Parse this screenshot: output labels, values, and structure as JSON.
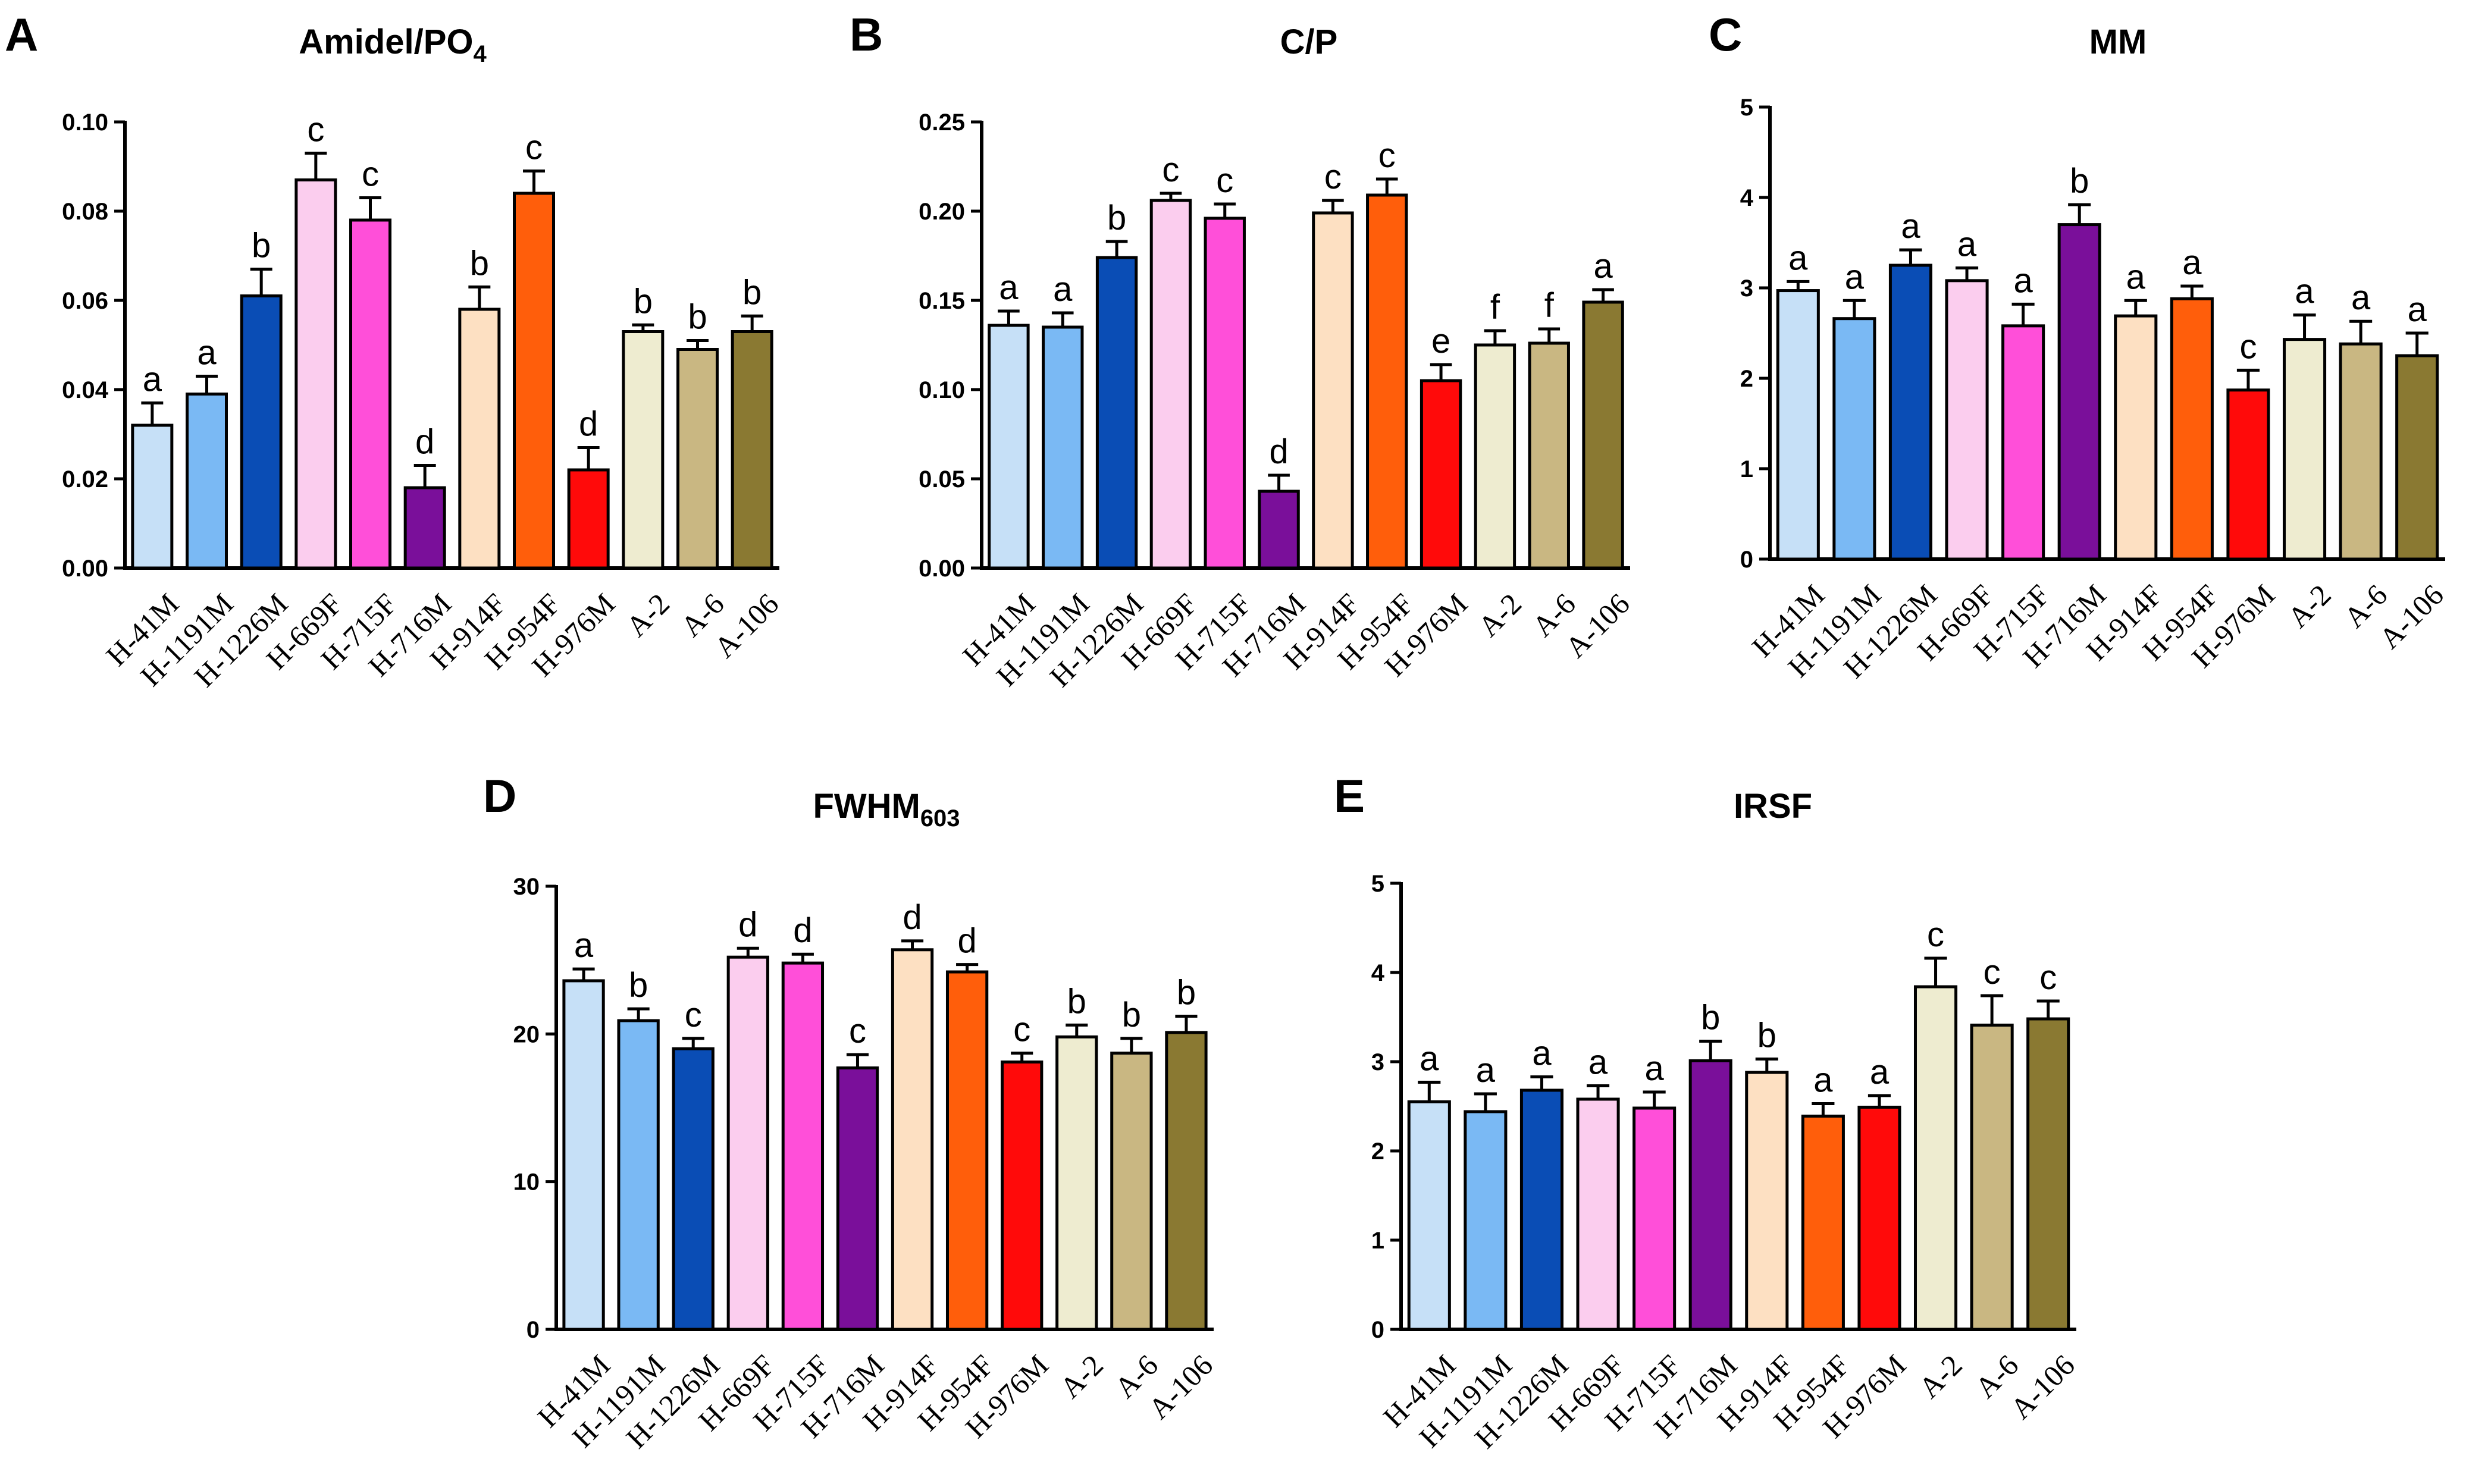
{
  "chart_data": [
    {
      "panel": "A",
      "title": "Amidel/PO",
      "title_sub": "4",
      "type": "bar",
      "ylim": [
        0,
        0.1
      ],
      "yticks": [
        "0.00",
        "0.02",
        "0.04",
        "0.06",
        "0.08",
        "0.10"
      ],
      "categories": [
        "H-41M",
        "H-1191M",
        "H-1226M",
        "H-669F",
        "H-715F",
        "H-716M",
        "H-914F",
        "H-954F",
        "H-976M",
        "A-2",
        "A-6",
        "A-106"
      ],
      "values": [
        0.032,
        0.039,
        0.061,
        0.087,
        0.078,
        0.018,
        0.058,
        0.084,
        0.022,
        0.053,
        0.049,
        0.053
      ],
      "errors": [
        0.005,
        0.004,
        0.006,
        0.006,
        0.005,
        0.005,
        0.005,
        0.005,
        0.005,
        0.0015,
        0.002,
        0.0035
      ],
      "letters": [
        "a",
        "a",
        "b",
        "c",
        "c",
        "d",
        "b",
        "c",
        "d",
        "b",
        "b",
        "b"
      ]
    },
    {
      "panel": "B",
      "title": "C/P",
      "title_sub": "",
      "type": "bar",
      "ylim": [
        0,
        0.25
      ],
      "yticks": [
        "0.00",
        "0.05",
        "0.10",
        "0.15",
        "0.20",
        "0.25"
      ],
      "categories": [
        "H-41M",
        "H-1191M",
        "H-1226M",
        "H-669F",
        "H-715F",
        "H-716M",
        "H-914F",
        "H-954F",
        "H-976M",
        "A-2",
        "A-6",
        "A-106"
      ],
      "values": [
        0.136,
        0.135,
        0.174,
        0.206,
        0.196,
        0.043,
        0.199,
        0.209,
        0.105,
        0.125,
        0.126,
        0.149
      ],
      "errors": [
        0.008,
        0.008,
        0.009,
        0.004,
        0.008,
        0.009,
        0.007,
        0.009,
        0.009,
        0.008,
        0.008,
        0.007
      ],
      "letters": [
        "a",
        "a",
        "b",
        "c",
        "c",
        "d",
        "c",
        "c",
        "e",
        "f",
        "f",
        "a"
      ]
    },
    {
      "panel": "C",
      "title": "MM",
      "title_sub": "",
      "type": "bar",
      "ylim": [
        0,
        5
      ],
      "yticks": [
        "0",
        "1",
        "2",
        "3",
        "4",
        "5"
      ],
      "categories": [
        "H-41M",
        "H-1191M",
        "H-1226M",
        "H-669F",
        "H-715F",
        "H-716M",
        "H-914F",
        "H-954F",
        "H-976M",
        "A-2",
        "A-6",
        "A-106"
      ],
      "values": [
        2.97,
        2.66,
        3.25,
        3.08,
        2.58,
        3.7,
        2.69,
        2.88,
        1.87,
        2.43,
        2.38,
        2.25
      ],
      "errors": [
        0.1,
        0.2,
        0.17,
        0.14,
        0.24,
        0.22,
        0.17,
        0.14,
        0.22,
        0.27,
        0.25,
        0.25
      ],
      "letters": [
        "a",
        "a",
        "a",
        "a",
        "a",
        "b",
        "a",
        "a",
        "c",
        "a",
        "a",
        "a"
      ]
    },
    {
      "panel": "D",
      "title": "FWHM",
      "title_sub": "603",
      "type": "bar",
      "ylim": [
        0,
        30
      ],
      "yticks": [
        "0",
        "10",
        "20",
        "30"
      ],
      "categories": [
        "H-41M",
        "H-1191M",
        "H-1226M",
        "H-669F",
        "H-715F",
        "H-716M",
        "H-914F",
        "H-954F",
        "H-976M",
        "A-2",
        "A-6",
        "A-106"
      ],
      "values": [
        23.6,
        20.9,
        19.0,
        25.2,
        24.8,
        17.7,
        25.7,
        24.2,
        18.1,
        19.8,
        18.7,
        20.1
      ],
      "errors": [
        0.8,
        0.8,
        0.7,
        0.6,
        0.6,
        0.9,
        0.6,
        0.5,
        0.6,
        0.8,
        1.0,
        1.1
      ],
      "letters": [
        "a",
        "b",
        "c",
        "d",
        "d",
        "c",
        "d",
        "d",
        "c",
        "b",
        "b",
        "b"
      ]
    },
    {
      "panel": "E",
      "title": "IRSF",
      "title_sub": "",
      "type": "bar",
      "ylim": [
        0,
        5
      ],
      "yticks": [
        "0",
        "1",
        "2",
        "3",
        "4",
        "5"
      ],
      "categories": [
        "H-41M",
        "H-1191M",
        "H-1226M",
        "H-669F",
        "H-715F",
        "H-716M",
        "H-914F",
        "H-954F",
        "H-976M",
        "A-2",
        "A-6",
        "A-106"
      ],
      "values": [
        2.55,
        2.44,
        2.68,
        2.58,
        2.48,
        3.01,
        2.88,
        2.39,
        2.49,
        3.84,
        3.41,
        3.48
      ],
      "errors": [
        0.22,
        0.2,
        0.15,
        0.15,
        0.18,
        0.22,
        0.15,
        0.14,
        0.13,
        0.32,
        0.33,
        0.2
      ],
      "letters": [
        "a",
        "a",
        "a",
        "a",
        "a",
        "b",
        "b",
        "a",
        "a",
        "c",
        "c",
        "c"
      ]
    }
  ],
  "colors": [
    "#c6e0f7",
    "#7ab9f4",
    "#0a4db5",
    "#fbcdee",
    "#ff4fd9",
    "#7a0f9a",
    "#fde0c2",
    "#ff5e0b",
    "#ff0a0a",
    "#eeecd0",
    "#c9b782",
    "#8a7932"
  ]
}
